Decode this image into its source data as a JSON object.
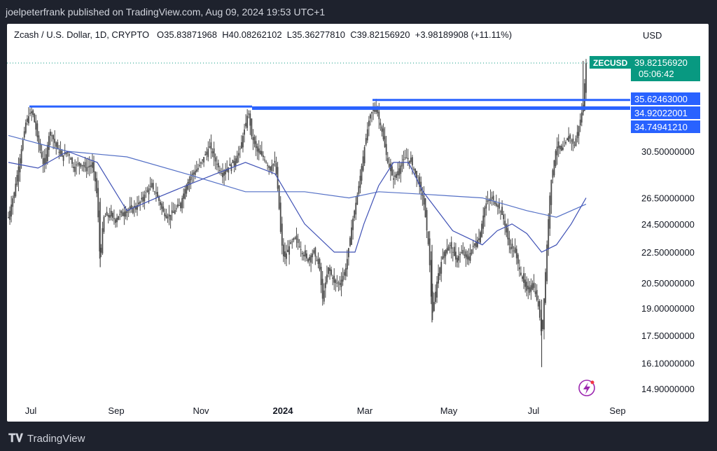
{
  "header": {
    "published": "joelpeterfrank published on TradingView.com, Aug 09, 2024 19:53 UTC+1"
  },
  "legend": {
    "symbol": "Zcash / U.S. Dollar, 1D, CRYPTO",
    "open": "O35.83871968",
    "high": "H40.08262102",
    "low": "L35.36277810",
    "close": "C39.82156920",
    "change": "+3.98189908 (+11.11%)"
  },
  "currency": "USD",
  "footer": {
    "brand": "TradingView"
  },
  "colors": {
    "candle": "#4a4a4a",
    "ma_fast": "#3f51b5",
    "ma_slow": "#5470c6",
    "level": "#2962ff",
    "last_price": "#089981"
  },
  "chart_data": {
    "type": "candlestick",
    "symbol": "ZECUSD",
    "x_ticks": [
      "Jul",
      "Sep",
      "Nov",
      "2024",
      "Mar",
      "May",
      "Jul",
      "Sep"
    ],
    "y_ticks": [
      30.5,
      26.5,
      24.5,
      22.5,
      20.5,
      19.0,
      17.5,
      16.1,
      14.9
    ],
    "y_tick_labels": [
      "30.50000000",
      "26.50000000",
      "24.50000000",
      "22.50000000",
      "20.50000000",
      "19.00000000",
      "17.50000000",
      "16.10000000",
      "14.90000000"
    ],
    "y_scale": "log",
    "last_price": {
      "label": "ZECUSD",
      "value": "39.82156920",
      "countdown": "05:06:42"
    },
    "horizontal_levels": [
      {
        "value": 35.62463,
        "label": "35.62463000"
      },
      {
        "value": 34.92022001,
        "label": "34.92022001"
      },
      {
        "value": 34.7494121,
        "label": "34.74941210"
      }
    ],
    "price_path": [
      [
        0,
        25.0
      ],
      [
        2,
        27.0
      ],
      [
        4,
        30.0
      ],
      [
        6,
        33.5
      ],
      [
        8,
        34.5
      ],
      [
        10,
        31.5
      ],
      [
        12,
        29.0
      ],
      [
        14,
        32.5
      ],
      [
        16,
        31.0
      ],
      [
        18,
        30.0
      ],
      [
        20,
        30.5
      ],
      [
        22,
        29.0
      ],
      [
        24,
        29.5
      ],
      [
        26,
        29.0
      ],
      [
        28,
        29.3
      ],
      [
        29,
        28.5
      ],
      [
        30,
        26.5
      ],
      [
        31,
        21.5
      ],
      [
        32,
        25.0
      ],
      [
        34,
        25.2
      ],
      [
        36,
        24.8
      ],
      [
        38,
        25.3
      ],
      [
        40,
        25.5
      ],
      [
        42,
        25.7
      ],
      [
        44,
        26.0
      ],
      [
        46,
        26.8
      ],
      [
        48,
        27.5
      ],
      [
        50,
        26.8
      ],
      [
        52,
        25.5
      ],
      [
        54,
        25.0
      ],
      [
        56,
        25.5
      ],
      [
        58,
        26.0
      ],
      [
        60,
        27.5
      ],
      [
        62,
        28.5
      ],
      [
        64,
        29.0
      ],
      [
        66,
        30.0
      ],
      [
        68,
        31.0
      ],
      [
        70,
        29.5
      ],
      [
        72,
        28.5
      ],
      [
        74,
        29.0
      ],
      [
        76,
        29.5
      ],
      [
        78,
        30.5
      ],
      [
        80,
        33.0
      ],
      [
        81,
        34.5
      ],
      [
        82,
        32.0
      ],
      [
        84,
        30.5
      ],
      [
        86,
        30.0
      ],
      [
        88,
        29.0
      ],
      [
        90,
        29.5
      ],
      [
        91,
        27.0
      ],
      [
        92,
        23.5
      ],
      [
        93,
        22.0
      ],
      [
        95,
        23.0
      ],
      [
        97,
        23.5
      ],
      [
        99,
        22.5
      ],
      [
        101,
        22.0
      ],
      [
        103,
        22.5
      ],
      [
        105,
        21.5
      ],
      [
        106,
        19.5
      ],
      [
        108,
        21.5
      ],
      [
        110,
        20.5
      ],
      [
        112,
        20.5
      ],
      [
        114,
        21.5
      ],
      [
        116,
        24.5
      ],
      [
        118,
        27.0
      ],
      [
        120,
        30.5
      ],
      [
        122,
        34.0
      ],
      [
        124,
        35.0
      ],
      [
        126,
        32.5
      ],
      [
        128,
        29.5
      ],
      [
        130,
        28.0
      ],
      [
        132,
        29.0
      ],
      [
        134,
        30.0
      ],
      [
        136,
        29.5
      ],
      [
        138,
        28.0
      ],
      [
        140,
        26.5
      ],
      [
        142,
        22.5
      ],
      [
        143,
        18.5
      ],
      [
        145,
        21.0
      ],
      [
        147,
        22.5
      ],
      [
        149,
        23.0
      ],
      [
        151,
        22.0
      ],
      [
        153,
        22.5
      ],
      [
        155,
        22.0
      ],
      [
        157,
        23.0
      ],
      [
        159,
        23.5
      ],
      [
        161,
        26.0
      ],
      [
        163,
        26.5
      ],
      [
        165,
        26.0
      ],
      [
        167,
        25.0
      ],
      [
        169,
        23.0
      ],
      [
        171,
        22.5
      ],
      [
        173,
        21.0
      ],
      [
        175,
        20.0
      ],
      [
        177,
        20.5
      ],
      [
        179,
        19.0
      ],
      [
        180,
        17.5
      ],
      [
        181,
        20.0
      ],
      [
        183,
        27.5
      ],
      [
        185,
        31.0
      ],
      [
        187,
        30.5
      ],
      [
        189,
        32.0
      ],
      [
        191,
        31.0
      ],
      [
        193,
        33.5
      ],
      [
        194,
        35.0
      ],
      [
        195,
        39.8
      ]
    ],
    "ma_fast_path": [
      [
        0,
        29.5
      ],
      [
        10,
        29.0
      ],
      [
        20,
        30.5
      ],
      [
        30,
        29.5
      ],
      [
        40,
        25.5
      ],
      [
        50,
        26.5
      ],
      [
        60,
        27.5
      ],
      [
        70,
        28.5
      ],
      [
        80,
        29.5
      ],
      [
        90,
        28.5
      ],
      [
        100,
        24.5
      ],
      [
        110,
        22.5
      ],
      [
        117,
        22.5
      ],
      [
        120,
        24.5
      ],
      [
        125,
        27.5
      ],
      [
        130,
        29.5
      ],
      [
        135,
        29.5
      ],
      [
        140,
        27.0
      ],
      [
        150,
        24.0
      ],
      [
        160,
        23.0
      ],
      [
        165,
        24.0
      ],
      [
        170,
        24.5
      ],
      [
        175,
        23.8
      ],
      [
        180,
        22.5
      ],
      [
        185,
        23.0
      ],
      [
        190,
        24.5
      ],
      [
        195,
        26.5
      ]
    ],
    "ma_slow_path": [
      [
        0,
        32.0
      ],
      [
        20,
        30.5
      ],
      [
        40,
        30.0
      ],
      [
        60,
        28.5
      ],
      [
        80,
        27.0
      ],
      [
        100,
        27.0
      ],
      [
        115,
        26.5
      ],
      [
        125,
        27.0
      ],
      [
        140,
        26.8
      ],
      [
        160,
        26.5
      ],
      [
        175,
        25.5
      ],
      [
        185,
        25.0
      ],
      [
        195,
        26.0
      ]
    ]
  }
}
